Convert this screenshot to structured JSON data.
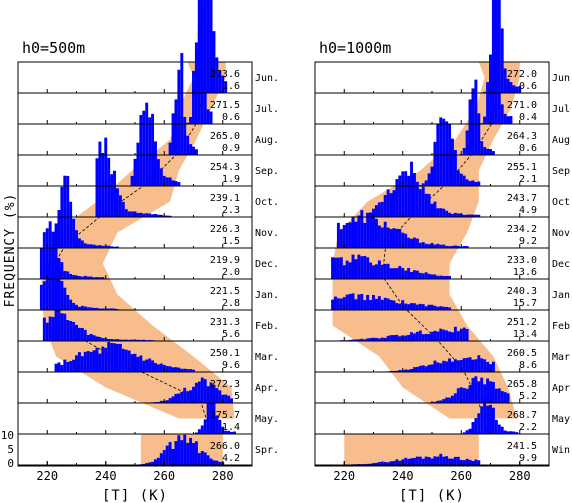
{
  "figure": {
    "ylabel": "FREQUENCY (%)",
    "spring_ticks": [
      "10",
      "5",
      "0"
    ]
  },
  "chart_data": [
    {
      "type": "histogram-stack",
      "title": "h0=500m",
      "xlabel": "[T] (K)",
      "xlim": [
        210,
        290
      ],
      "xticks": [
        "220",
        "240",
        "260",
        "280"
      ],
      "band_color": "#f7bd8c",
      "bar_color": "#0000ff",
      "rows": [
        {
          "month": "Jun.",
          "mean": "273.6",
          "sd": "1.6",
          "peak_x": 274,
          "peak_h": 120,
          "band": [
            270,
            281
          ]
        },
        {
          "month": "Jul.",
          "mean": "271.5",
          "sd": "0.6",
          "peak_x": 272,
          "peak_h": 100,
          "band": [
            265,
            276
          ]
        },
        {
          "month": "Aug.",
          "mean": "265.0",
          "sd": "0.9",
          "peak_x": 265,
          "peak_h": 90,
          "band": [
            262,
            271
          ]
        },
        {
          "month": "Sep.",
          "mean": "254.3",
          "sd": "1.9",
          "peak_x": 254,
          "peak_h": 80,
          "band": [
            249,
            265
          ]
        },
        {
          "month": "Oct.",
          "mean": "239.1",
          "sd": "2.3",
          "peak_x": 239,
          "peak_h": 75,
          "band": [
            237,
            262
          ]
        },
        {
          "month": "Nov.",
          "mean": "226.3",
          "sd": "1.5",
          "peak_x": 226,
          "peak_h": 60,
          "band": [
            223,
            244
          ]
        },
        {
          "month": "Dec.",
          "mean": "219.9",
          "sd": "2.0",
          "peak_x": 220,
          "peak_h": 55,
          "band": [
            218,
            239
          ]
        },
        {
          "month": "Jan.",
          "mean": "221.5",
          "sd": "2.8",
          "peak_x": 221,
          "peak_h": 40,
          "band": [
            218,
            244
          ]
        },
        {
          "month": "Feb.",
          "mean": "231.3",
          "sd": "5.6",
          "peak_x": 222,
          "peak_h": 25,
          "band": [
            219,
            256
          ]
        },
        {
          "month": "Mar.",
          "mean": "250.1",
          "sd": "9.6",
          "peak_x": 240,
          "peak_h": 22,
          "band": [
            223,
            270
          ]
        },
        {
          "month": "Apr.",
          "mean": "272.3",
          "sd": "5",
          "peak_x": 272,
          "peak_h": 18,
          "band": [
            240,
            283
          ]
        },
        {
          "month": "May.",
          "mean": "275.7",
          "sd": "1.4",
          "peak_x": 276,
          "peak_h": 30,
          "band": [
            265,
            284
          ]
        },
        {
          "month": "Spr.",
          "mean": "266.0",
          "sd": "4.2",
          "peak_x": 266,
          "peak_h": 25,
          "band": [
            252,
            280
          ]
        }
      ]
    },
    {
      "type": "histogram-stack",
      "title": "h0=1000m",
      "xlabel": "[T] (K)",
      "xlim": [
        210,
        290
      ],
      "xticks": [
        "220",
        "240",
        "260",
        "280"
      ],
      "band_color": "#f7bd8c",
      "bar_color": "#0000ff",
      "rows": [
        {
          "month": "Jun.",
          "mean": "272.0",
          "sd": "0.6",
          "peak_x": 272,
          "peak_h": 120,
          "band": [
            268,
            280
          ]
        },
        {
          "month": "Jul.",
          "mean": "271.0",
          "sd": "0.4",
          "peak_x": 271,
          "peak_h": 100,
          "band": [
            265,
            277
          ]
        },
        {
          "month": "Aug.",
          "mean": "264.3",
          "sd": "0.6",
          "peak_x": 264,
          "peak_h": 75,
          "band": [
            258,
            271
          ]
        },
        {
          "month": "Sep.",
          "mean": "255.1",
          "sd": "2.1",
          "peak_x": 254,
          "peak_h": 65,
          "band": [
            246,
            266
          ]
        },
        {
          "month": "Oct.",
          "mean": "243.7",
          "sd": "4.9",
          "peak_x": 241,
          "peak_h": 40,
          "band": [
            228,
            266
          ]
        },
        {
          "month": "Nov.",
          "mean": "234.2",
          "sd": "9.2",
          "peak_x": 225,
          "peak_h": 28,
          "band": [
            218,
            262
          ]
        },
        {
          "month": "Dec.",
          "mean": "233.0",
          "sd": "13.6",
          "peak_x": 220,
          "peak_h": 18,
          "band": [
            216,
            256
          ]
        },
        {
          "month": "Jan.",
          "mean": "240.3",
          "sd": "15.7",
          "peak_x": 220,
          "peak_h": 12,
          "band": [
            216,
            256
          ]
        },
        {
          "month": "Feb.",
          "mean": "251.2",
          "sd": "13.4",
          "peak_x": 255,
          "peak_h": 10,
          "band": [
            216,
            262
          ]
        },
        {
          "month": "Mar.",
          "mean": "260.5",
          "sd": "8.6",
          "peak_x": 260,
          "peak_h": 14,
          "band": [
            232,
            271
          ]
        },
        {
          "month": "Apr.",
          "mean": "265.8",
          "sd": "5.2",
          "peak_x": 266,
          "peak_h": 22,
          "band": [
            240,
            276
          ]
        },
        {
          "month": "May.",
          "mean": "268.7",
          "sd": "2.2",
          "peak_x": 268,
          "peak_h": 30,
          "band": [
            256,
            279
          ]
        },
        {
          "month": "Win.",
          "mean": "241.5",
          "sd": "9.9",
          "peak_x": 250,
          "peak_h": 8,
          "band": [
            220,
            266
          ]
        }
      ]
    }
  ]
}
